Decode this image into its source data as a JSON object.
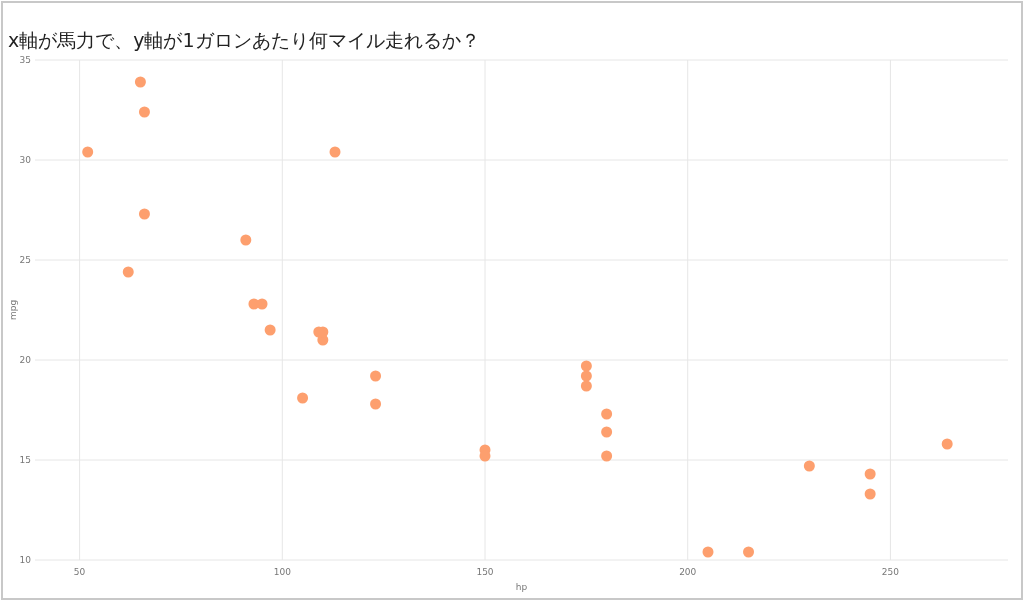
{
  "chart_data": {
    "type": "scatter",
    "title": "x軸が馬力で、y軸が1ガロンあたり何マイル走れるか？",
    "xlabel": "hp",
    "ylabel": "mpg",
    "x": [
      110,
      93,
      110,
      175,
      105,
      245,
      62,
      95,
      123,
      123,
      180,
      180,
      180,
      205,
      215,
      230,
      66,
      52,
      65,
      97,
      150,
      150,
      245,
      175,
      66,
      91,
      113,
      264,
      175,
      109
    ],
    "series": [
      {
        "color": "#fd9f6e",
        "values": [
          21.0,
          22.8,
          21.4,
          18.7,
          18.1,
          14.3,
          24.4,
          22.8,
          19.2,
          17.8,
          16.4,
          17.3,
          15.2,
          10.4,
          10.4,
          14.7,
          32.4,
          30.4,
          33.9,
          21.5,
          15.5,
          15.2,
          13.3,
          19.2,
          27.3,
          26.0,
          30.4,
          15.8,
          19.7,
          21.4
        ]
      }
    ],
    "xlim": [
      39,
      279
    ],
    "ylim": [
      10,
      35
    ],
    "xticks": [
      50,
      100,
      150,
      200,
      250
    ],
    "yticks": [
      10,
      15,
      20,
      25,
      30,
      35
    ],
    "grid": true,
    "marker": "circle"
  }
}
